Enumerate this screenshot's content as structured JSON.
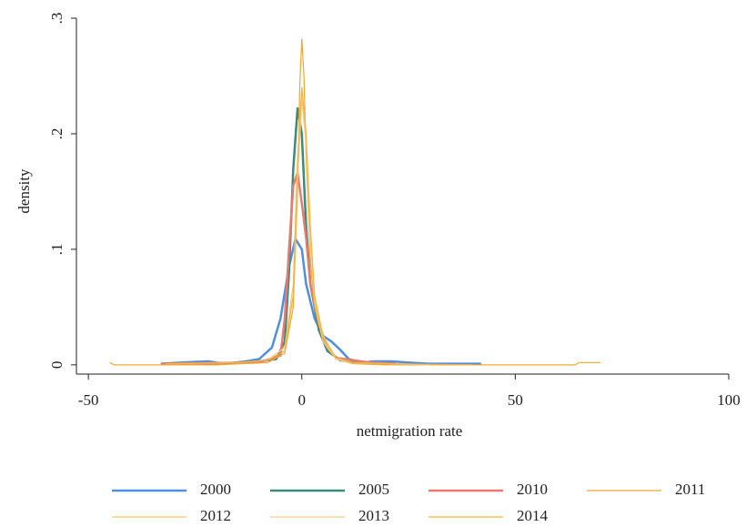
{
  "chart_data": {
    "type": "line",
    "xlabel": "netmigration rate",
    "ylabel": "density",
    "xlim": [
      -52.8,
      100
    ],
    "ylim": [
      -0.008,
      0.3
    ],
    "xticks": [
      -50,
      0,
      50,
      100
    ],
    "yticks": [
      {
        "value": 0,
        "label": "0"
      },
      {
        "value": 0.1,
        "label": ".1"
      },
      {
        "value": 0.2,
        "label": ".2"
      },
      {
        "value": 0.3,
        "label": ".3"
      }
    ],
    "grid": false,
    "legend": "bottom",
    "series": [
      {
        "name": "2000",
        "color": "#4f8ee0",
        "line_width": 2.5,
        "x": [
          -33,
          -28,
          -22,
          -18,
          -13,
          -10,
          -7,
          -5,
          -3,
          -1.5,
          0,
          1,
          3,
          5,
          7,
          9,
          11,
          14,
          17,
          21,
          25,
          30,
          35,
          39,
          42
        ],
        "values": [
          0.001,
          0.002,
          0.003,
          0.001,
          0.003,
          0.005,
          0.015,
          0.04,
          0.085,
          0.109,
          0.1,
          0.07,
          0.04,
          0.025,
          0.02,
          0.013,
          0.005,
          0.002,
          0.003,
          0.003,
          0.002,
          0.001,
          0.001,
          0.001,
          0.001
        ]
      },
      {
        "name": "2005",
        "color": "#3b8b7c",
        "line_width": 2.5,
        "x": [
          -33,
          -20,
          -10,
          -6,
          -4,
          -3,
          -2,
          -1,
          0,
          1,
          2,
          4,
          6,
          9,
          14,
          22
        ],
        "values": [
          0.001,
          0.001,
          0.003,
          0.005,
          0.02,
          0.08,
          0.17,
          0.222,
          0.2,
          0.12,
          0.07,
          0.03,
          0.012,
          0.004,
          0.002,
          0.001
        ]
      },
      {
        "name": "2010",
        "color": "#e57b72",
        "line_width": 2.5,
        "x": [
          -33,
          -10,
          -5,
          -4,
          -3,
          -2,
          -1,
          0,
          1,
          2,
          4,
          6,
          8,
          12,
          16,
          22
        ],
        "values": [
          0.001,
          0.002,
          0.008,
          0.04,
          0.1,
          0.155,
          0.166,
          0.14,
          0.11,
          0.07,
          0.035,
          0.015,
          0.006,
          0.004,
          0.002,
          0.001
        ]
      },
      {
        "name": "2011",
        "color": "#f0a830",
        "line_width": 1.2,
        "x": [
          -45,
          -44,
          -20,
          -8,
          -4,
          -2,
          -1,
          -0.5,
          0,
          0.5,
          1,
          2,
          3,
          5,
          8,
          12,
          20,
          64,
          65,
          69,
          70
        ],
        "values": [
          0.002,
          0,
          0,
          0.002,
          0.01,
          0.05,
          0.15,
          0.24,
          0.282,
          0.25,
          0.18,
          0.09,
          0.05,
          0.02,
          0.005,
          0.001,
          0,
          0,
          0.002,
          0.002,
          0.002
        ]
      },
      {
        "name": "2012",
        "color": "#f6c46c",
        "line_width": 1.2,
        "x": [
          -30,
          -15,
          -8,
          -4,
          -2,
          -1,
          0,
          1,
          2,
          3,
          5,
          8,
          12,
          20,
          30
        ],
        "values": [
          0.001,
          0.002,
          0.004,
          0.015,
          0.07,
          0.18,
          0.24,
          0.2,
          0.11,
          0.06,
          0.025,
          0.006,
          0.002,
          0.001,
          0
        ]
      },
      {
        "name": "2013",
        "color": "#f5cc8e",
        "line_width": 1.2,
        "x": [
          -30,
          -15,
          -8,
          -4,
          -2,
          -1,
          0,
          1,
          2,
          3,
          5,
          8,
          12,
          20,
          30
        ],
        "values": [
          0.001,
          0.002,
          0.004,
          0.015,
          0.06,
          0.16,
          0.23,
          0.19,
          0.1,
          0.055,
          0.02,
          0.005,
          0.002,
          0.001,
          0
        ]
      },
      {
        "name": "2014",
        "color": "#f2b543",
        "line_width": 1.2,
        "x": [
          -32,
          -15,
          -8,
          -4,
          -2,
          -1,
          0,
          1,
          2,
          3,
          5,
          8,
          12,
          20,
          40
        ],
        "values": [
          0.001,
          0.002,
          0.004,
          0.012,
          0.06,
          0.17,
          0.24,
          0.2,
          0.12,
          0.06,
          0.022,
          0.006,
          0.002,
          0.001,
          0
        ]
      }
    ]
  }
}
